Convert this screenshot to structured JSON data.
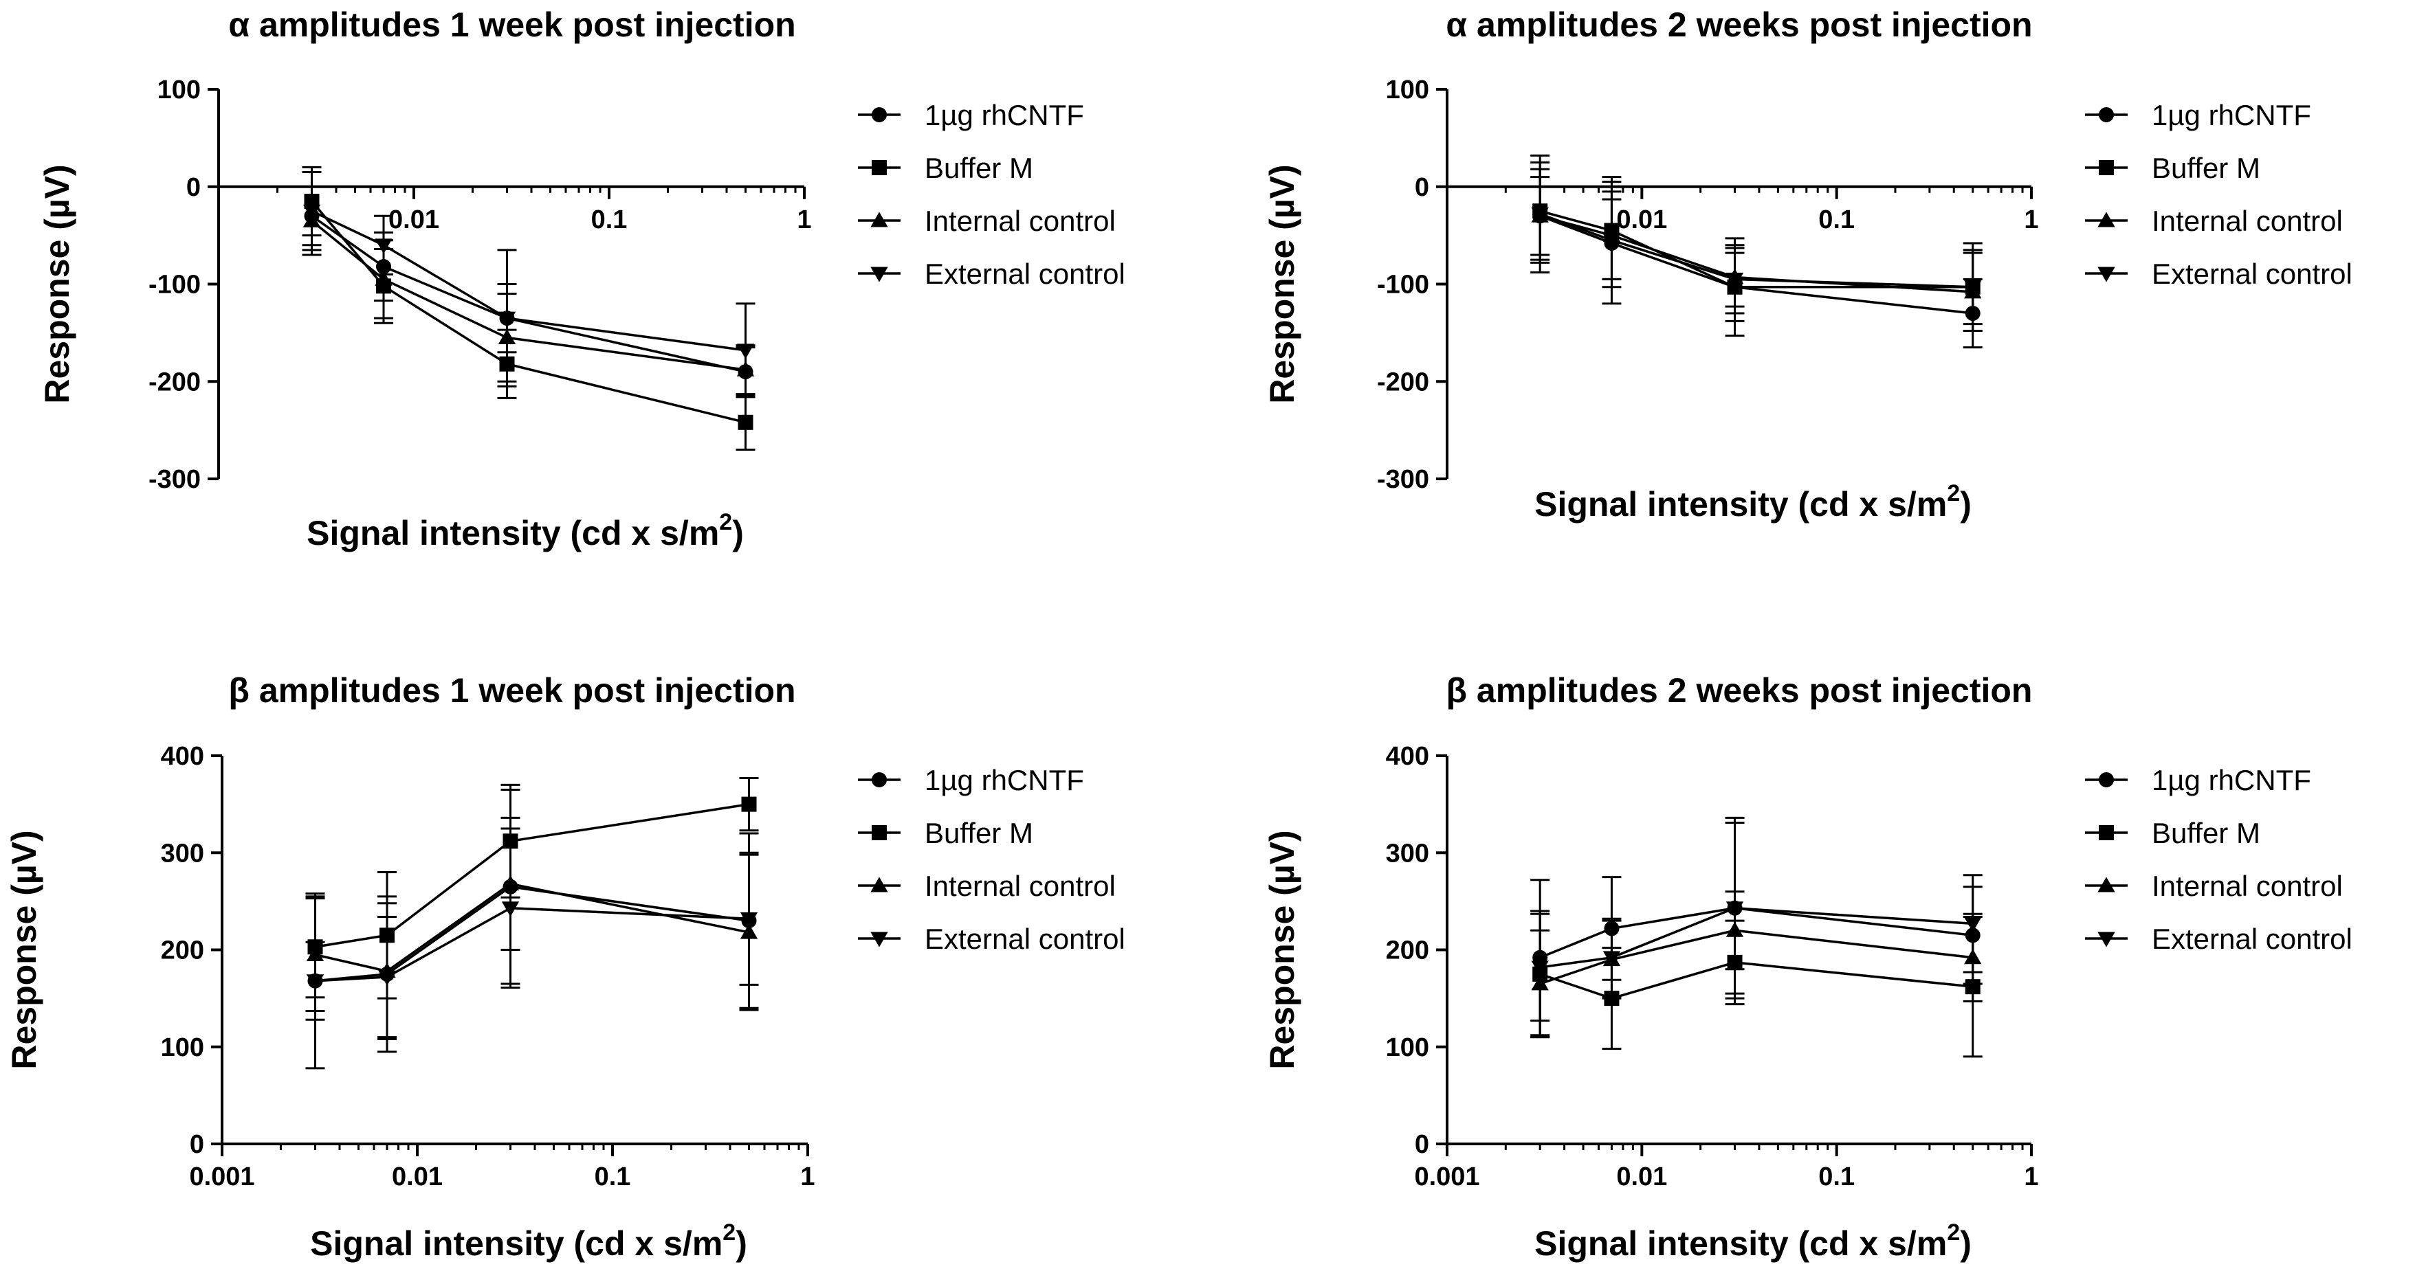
{
  "chart_data": [
    {
      "type": "line",
      "title": "α amplitudes 1 week post injection",
      "xlabel": "Signal intensity (cd x s/m",
      "xlabel_sup": "2",
      "xlabel_close": ")",
      "ylabel": "Response (µV)",
      "xscale": "log",
      "xlim": [
        0.001,
        1
      ],
      "ylim": [
        -300,
        100
      ],
      "yticks": [
        100,
        0,
        -100,
        -200,
        -300
      ],
      "ytick_labels": [
        "100",
        "0",
        "-100",
        "-200",
        "-300"
      ],
      "xticks": [
        0.01,
        0.1,
        1
      ],
      "xtick_labels": [
        "0.01",
        "0.1",
        "1"
      ],
      "x_axis_at_zero": true,
      "legend_position": "right",
      "x": [
        0.003,
        0.007,
        0.03,
        0.5
      ],
      "series": [
        {
          "name": "1µg rhCNTF",
          "marker": "circle",
          "values": [
            -30,
            -82,
            -135,
            -190
          ],
          "errors": [
            30,
            35,
            35,
            25
          ]
        },
        {
          "name": "Buffer M",
          "marker": "square",
          "values": [
            -15,
            -102,
            -182,
            -242
          ],
          "errors": [
            35,
            38,
            35,
            28
          ]
        },
        {
          "name": "Internal control",
          "marker": "triangle-up",
          "values": [
            -35,
            -95,
            -155,
            -188
          ],
          "errors": [
            35,
            40,
            45,
            25
          ]
        },
        {
          "name": "External control",
          "marker": "triangle-down",
          "values": [
            -25,
            -60,
            -135,
            -168
          ],
          "errors": [
            40,
            30,
            70,
            48
          ]
        }
      ]
    },
    {
      "type": "line",
      "title": "α amplitudes 2 weeks post injection",
      "xlabel": "Signal intensity (cd x s/m",
      "xlabel_sup": "2",
      "xlabel_close": ")",
      "ylabel": "Response (µV)",
      "xscale": "log",
      "xlim": [
        0.001,
        1
      ],
      "ylim": [
        -300,
        100
      ],
      "yticks": [
        100,
        0,
        -100,
        -200,
        -300
      ],
      "ytick_labels": [
        "100",
        "0",
        "-100",
        "-200",
        "-300"
      ],
      "xticks": [
        0.01,
        0.1,
        1
      ],
      "xtick_labels": [
        "0.01",
        "0.1",
        "1"
      ],
      "x_axis_at_zero": true,
      "legend_position": "right",
      "x": [
        0.003,
        0.007,
        0.03,
        0.5
      ],
      "series": [
        {
          "name": "1µg rhCNTF",
          "marker": "circle",
          "values": [
            -30,
            -58,
            -103,
            -130
          ],
          "errors": [
            48,
            45,
            35,
            35
          ]
        },
        {
          "name": "Buffer M",
          "marker": "square",
          "values": [
            -25,
            -45,
            -103,
            -103
          ],
          "errors": [
            50,
            50,
            50,
            45
          ]
        },
        {
          "name": "Internal control",
          "marker": "triangle-up",
          "values": [
            -30,
            -50,
            -93,
            -108
          ],
          "errors": [
            40,
            45,
            30,
            40
          ]
        },
        {
          "name": "External control",
          "marker": "triangle-down",
          "values": [
            -28,
            -55,
            -95,
            -103
          ],
          "errors": [
            60,
            65,
            35,
            38
          ]
        }
      ]
    },
    {
      "type": "line",
      "title": "β amplitudes 1 week post injection",
      "xlabel": "Signal intensity (cd x s/m",
      "xlabel_sup": "2",
      "xlabel_close": ")",
      "ylabel": "Response (µV)",
      "xscale": "log",
      "xlim": [
        0.001,
        1
      ],
      "ylim": [
        0,
        400
      ],
      "yticks": [
        400,
        300,
        200,
        100,
        0
      ],
      "ytick_labels": [
        "400",
        "300",
        "200",
        "100",
        "0"
      ],
      "xticks": [
        0.001,
        0.01,
        0.1,
        1
      ],
      "xtick_labels": [
        "0.001",
        "0.01",
        "0.1",
        "1"
      ],
      "x_axis_at_zero": false,
      "legend_position": "right",
      "x": [
        0.003,
        0.007,
        0.03,
        0.5
      ],
      "series": [
        {
          "name": "1µg rhCNTF",
          "marker": "circle",
          "values": [
            168,
            175,
            265,
            230
          ],
          "errors": [
            90,
            80,
            100,
            90
          ]
        },
        {
          "name": "Buffer M",
          "marker": "square",
          "values": [
            203,
            215,
            312,
            350
          ],
          "errors": [
            52,
            65,
            58,
            27
          ]
        },
        {
          "name": "Internal control",
          "marker": "triangle-up",
          "values": [
            195,
            178,
            268,
            218
          ],
          "errors": [
            58,
            70,
            68,
            80
          ]
        },
        {
          "name": "External control",
          "marker": "triangle-down",
          "values": [
            168,
            172,
            243,
            232
          ],
          "errors": [
            40,
            62,
            82,
            68
          ]
        }
      ]
    },
    {
      "type": "line",
      "title": "β amplitudes 2 weeks post injection",
      "xlabel": "Signal intensity (cd x s/m",
      "xlabel_sup": "2",
      "xlabel_close": ")",
      "ylabel": "Response (µV)",
      "xscale": "log",
      "xlim": [
        0.001,
        1
      ],
      "ylim": [
        0,
        400
      ],
      "yticks": [
        400,
        300,
        200,
        100,
        0
      ],
      "ytick_labels": [
        "400",
        "300",
        "200",
        "100",
        "0"
      ],
      "xticks": [
        0.001,
        0.01,
        0.1,
        1
      ],
      "xtick_labels": [
        "0.001",
        "0.01",
        "0.1",
        "1"
      ],
      "x_axis_at_zero": false,
      "legend_position": "right",
      "x": [
        0.003,
        0.007,
        0.03,
        0.5
      ],
      "series": [
        {
          "name": "1µg rhCNTF",
          "marker": "circle",
          "values": [
            192,
            222,
            243,
            215
          ],
          "errors": [
            80,
            53,
            93,
            50
          ]
        },
        {
          "name": "Buffer M",
          "marker": "square",
          "values": [
            175,
            150,
            187,
            162
          ],
          "errors": [
            65,
            52,
            43,
            72
          ]
        },
        {
          "name": "Internal control",
          "marker": "triangle-up",
          "values": [
            165,
            190,
            220,
            192
          ],
          "errors": [
            55,
            40,
            40,
            45
          ]
        },
        {
          "name": "External control",
          "marker": "triangle-down",
          "values": [
            182,
            192,
            243,
            227
          ],
          "errors": [
            55,
            40,
            88,
            50
          ]
        }
      ]
    }
  ]
}
